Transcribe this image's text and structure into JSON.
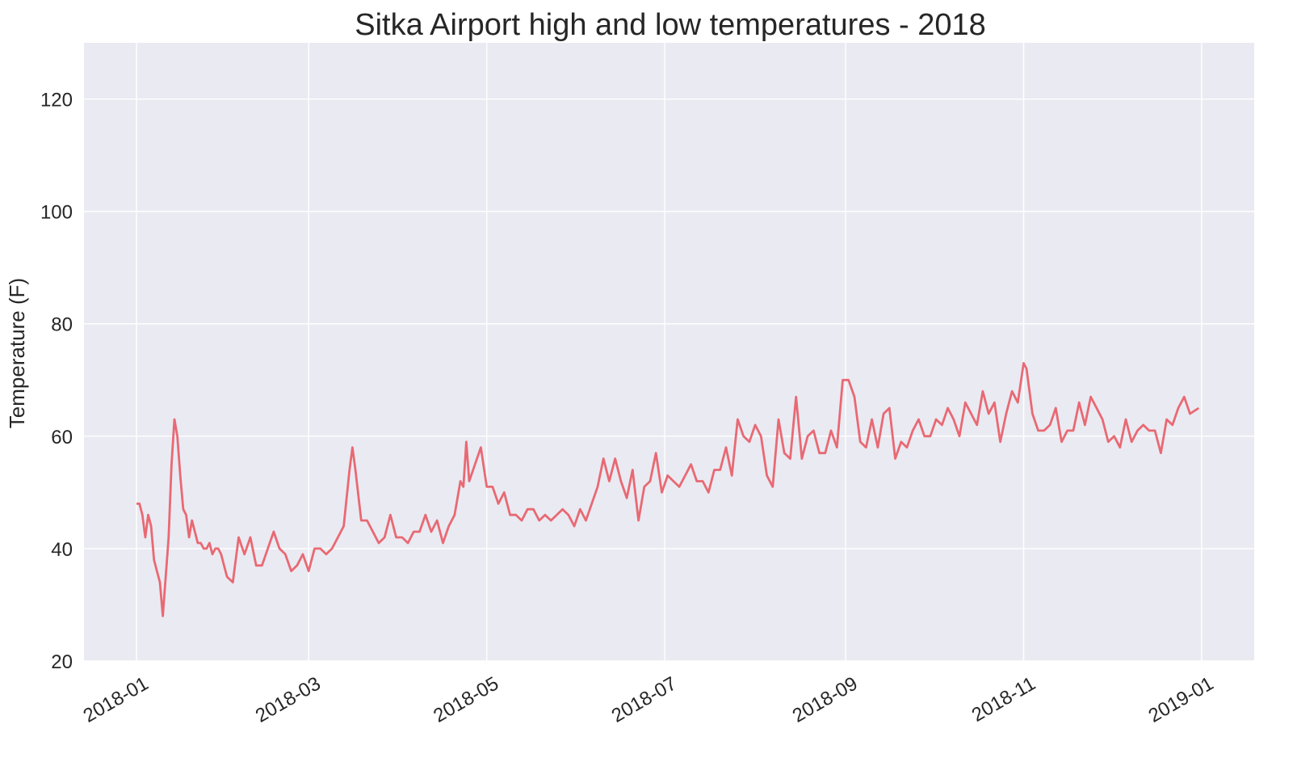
{
  "chart_data": {
    "type": "line",
    "title": "Sitka Airport high and low temperatures - 2018",
    "xlabel": "",
    "ylabel": "Temperature (F)",
    "xlim": [
      "2017-12-14",
      "2019-01-19"
    ],
    "ylim": [
      20,
      130
    ],
    "grid": true,
    "legend": "none",
    "x_ticks": [
      "2018-01",
      "2018-03",
      "2018-05",
      "2018-07",
      "2018-09",
      "2018-11",
      "2019-01"
    ],
    "y_ticks": [
      20,
      40,
      60,
      80,
      100,
      120
    ],
    "fill_between": {
      "color": "#0000ff",
      "opacity": 0.1
    },
    "series": [
      {
        "key": "highs",
        "color": "#e8525d",
        "points": [
          [
            "2018-01-01",
            48
          ],
          [
            "2018-01-02",
            48
          ],
          [
            "2018-01-03",
            46
          ],
          [
            "2018-01-04",
            42
          ],
          [
            "2018-01-05",
            46
          ],
          [
            "2018-01-06",
            44
          ],
          [
            "2018-01-07",
            38
          ],
          [
            "2018-01-08",
            36
          ],
          [
            "2018-01-09",
            34
          ],
          [
            "2018-01-10",
            28
          ],
          [
            "2018-01-11",
            35
          ],
          [
            "2018-01-12",
            42
          ],
          [
            "2018-01-13",
            55
          ],
          [
            "2018-01-14",
            63
          ],
          [
            "2018-01-15",
            60
          ],
          [
            "2018-01-16",
            53
          ],
          [
            "2018-01-17",
            47
          ],
          [
            "2018-01-18",
            46
          ],
          [
            "2018-01-19",
            42
          ],
          [
            "2018-01-20",
            45
          ],
          [
            "2018-01-21",
            43
          ],
          [
            "2018-01-22",
            41
          ],
          [
            "2018-01-23",
            41
          ],
          [
            "2018-01-24",
            40
          ],
          [
            "2018-01-25",
            40
          ],
          [
            "2018-01-26",
            41
          ],
          [
            "2018-01-27",
            39
          ],
          [
            "2018-01-28",
            40
          ],
          [
            "2018-01-29",
            40
          ],
          [
            "2018-01-30",
            39
          ],
          [
            "2018-01-31",
            37
          ],
          [
            "2018-02-01",
            35
          ],
          [
            "2018-02-03",
            34
          ],
          [
            "2018-02-05",
            42
          ],
          [
            "2018-02-07",
            39
          ],
          [
            "2018-02-09",
            42
          ],
          [
            "2018-02-11",
            37
          ],
          [
            "2018-02-13",
            37
          ],
          [
            "2018-02-15",
            40
          ],
          [
            "2018-02-17",
            43
          ],
          [
            "2018-02-19",
            40
          ],
          [
            "2018-02-21",
            39
          ],
          [
            "2018-02-23",
            36
          ],
          [
            "2018-02-25",
            37
          ],
          [
            "2018-02-27",
            39
          ],
          [
            "2018-03-01",
            36
          ],
          [
            "2018-03-03",
            40
          ],
          [
            "2018-03-05",
            40
          ],
          [
            "2018-03-07",
            39
          ],
          [
            "2018-03-09",
            40
          ],
          [
            "2018-03-11",
            42
          ],
          [
            "2018-03-13",
            44
          ],
          [
            "2018-03-15",
            54
          ],
          [
            "2018-03-16",
            58
          ],
          [
            "2018-03-17",
            54
          ],
          [
            "2018-03-19",
            45
          ],
          [
            "2018-03-21",
            45
          ],
          [
            "2018-03-23",
            43
          ],
          [
            "2018-03-25",
            41
          ],
          [
            "2018-03-27",
            42
          ],
          [
            "2018-03-29",
            46
          ],
          [
            "2018-03-31",
            42
          ],
          [
            "2018-04-02",
            42
          ],
          [
            "2018-04-04",
            41
          ],
          [
            "2018-04-06",
            43
          ],
          [
            "2018-04-08",
            43
          ],
          [
            "2018-04-10",
            46
          ],
          [
            "2018-04-12",
            43
          ],
          [
            "2018-04-14",
            45
          ],
          [
            "2018-04-16",
            41
          ],
          [
            "2018-04-18",
            44
          ],
          [
            "2018-04-20",
            46
          ],
          [
            "2018-04-22",
            52
          ],
          [
            "2018-04-23",
            51
          ],
          [
            "2018-04-24",
            59
          ],
          [
            "2018-04-25",
            52
          ],
          [
            "2018-04-27",
            55
          ],
          [
            "2018-04-29",
            58
          ],
          [
            "2018-05-01",
            51
          ],
          [
            "2018-05-03",
            51
          ],
          [
            "2018-05-05",
            48
          ],
          [
            "2018-05-07",
            50
          ],
          [
            "2018-05-09",
            46
          ],
          [
            "2018-05-11",
            46
          ],
          [
            "2018-05-13",
            45
          ],
          [
            "2018-05-15",
            47
          ],
          [
            "2018-05-17",
            47
          ],
          [
            "2018-05-19",
            45
          ],
          [
            "2018-05-21",
            46
          ],
          [
            "2018-05-23",
            45
          ],
          [
            "2018-05-25",
            46
          ],
          [
            "2018-05-27",
            47
          ],
          [
            "2018-05-29",
            46
          ],
          [
            "2018-05-31",
            44
          ],
          [
            "2018-06-02",
            47
          ],
          [
            "2018-06-04",
            45
          ],
          [
            "2018-06-06",
            48
          ],
          [
            "2018-06-08",
            51
          ],
          [
            "2018-06-10",
            56
          ],
          [
            "2018-06-12",
            52
          ],
          [
            "2018-06-14",
            56
          ],
          [
            "2018-06-16",
            52
          ],
          [
            "2018-06-18",
            49
          ],
          [
            "2018-06-20",
            54
          ],
          [
            "2018-06-22",
            45
          ],
          [
            "2018-06-24",
            51
          ],
          [
            "2018-06-26",
            52
          ],
          [
            "2018-06-28",
            57
          ],
          [
            "2018-06-30",
            50
          ],
          [
            "2018-07-02",
            53
          ],
          [
            "2018-07-04",
            52
          ],
          [
            "2018-07-06",
            51
          ],
          [
            "2018-07-08",
            53
          ],
          [
            "2018-07-10",
            55
          ],
          [
            "2018-07-12",
            52
          ],
          [
            "2018-07-14",
            52
          ],
          [
            "2018-07-16",
            50
          ],
          [
            "2018-07-18",
            54
          ],
          [
            "2018-07-20",
            54
          ],
          [
            "2018-07-22",
            58
          ],
          [
            "2018-07-24",
            53
          ],
          [
            "2018-07-26",
            63
          ],
          [
            "2018-07-28",
            60
          ],
          [
            "2018-07-30",
            59
          ],
          [
            "2018-08-01",
            62
          ],
          [
            "2018-08-03",
            60
          ],
          [
            "2018-08-05",
            53
          ],
          [
            "2018-08-07",
            51
          ],
          [
            "2018-08-09",
            63
          ],
          [
            "2018-08-11",
            57
          ],
          [
            "2018-08-13",
            56
          ],
          [
            "2018-08-15",
            67
          ],
          [
            "2018-08-17",
            56
          ],
          [
            "2018-08-19",
            60
          ],
          [
            "2018-08-21",
            61
          ],
          [
            "2018-08-23",
            57
          ],
          [
            "2018-08-25",
            57
          ],
          [
            "2018-08-27",
            61
          ],
          [
            "2018-08-29",
            58
          ],
          [
            "2018-08-31",
            70
          ],
          [
            "2018-09-02",
            70
          ],
          [
            "2018-09-04",
            67
          ],
          [
            "2018-09-06",
            59
          ],
          [
            "2018-09-08",
            58
          ],
          [
            "2018-09-10",
            63
          ],
          [
            "2018-09-12",
            58
          ],
          [
            "2018-09-14",
            64
          ],
          [
            "2018-09-16",
            65
          ],
          [
            "2018-09-18",
            56
          ],
          [
            "2018-09-20",
            59
          ],
          [
            "2018-09-22",
            58
          ],
          [
            "2018-09-24",
            61
          ],
          [
            "2018-09-26",
            63
          ],
          [
            "2018-09-28",
            60
          ],
          [
            "2018-09-30",
            60
          ],
          [
            "2018-10-02",
            63
          ],
          [
            "2018-10-04",
            62
          ],
          [
            "2018-10-06",
            65
          ],
          [
            "2018-10-08",
            63
          ],
          [
            "2018-10-10",
            60
          ],
          [
            "2018-10-12",
            66
          ],
          [
            "2018-10-14",
            64
          ],
          [
            "2018-10-16",
            62
          ],
          [
            "2018-10-18",
            68
          ],
          [
            "2018-10-20",
            64
          ],
          [
            "2018-10-22",
            66
          ],
          [
            "2018-10-24",
            59
          ],
          [
            "2018-10-26",
            64
          ],
          [
            "2018-10-28",
            68
          ],
          [
            "2018-10-30",
            66
          ],
          [
            "2018-11-01",
            73
          ],
          [
            "2018-11-02",
            72
          ],
          [
            "2018-11-04",
            64
          ],
          [
            "2018-11-06",
            61
          ],
          [
            "2018-11-08",
            61
          ],
          [
            "2018-11-10",
            62
          ],
          [
            "2018-11-12",
            65
          ],
          [
            "2018-11-14",
            59
          ],
          [
            "2018-11-16",
            61
          ],
          [
            "2018-11-18",
            61
          ],
          [
            "2018-11-20",
            66
          ],
          [
            "2018-11-22",
            62
          ],
          [
            "2018-11-24",
            67
          ],
          [
            "2018-11-26",
            65
          ],
          [
            "2018-11-28",
            63
          ],
          [
            "2018-11-30",
            59
          ],
          [
            "2018-12-02",
            60
          ],
          [
            "2018-12-04",
            58
          ],
          [
            "2018-12-06",
            63
          ],
          [
            "2018-12-08",
            59
          ],
          [
            "2018-12-10",
            61
          ],
          [
            "2018-12-12",
            62
          ],
          [
            "2018-12-14",
            61
          ],
          [
            "2018-12-16",
            61
          ],
          [
            "2018-12-18",
            57
          ],
          [
            "2018-12-20",
            63
          ],
          [
            "2018-12-22",
            62
          ],
          [
            "2018-12-24",
            65
          ],
          [
            "2018-12-26",
            67
          ],
          [
            "2018-12-28",
            64
          ],
          [
            "2018-12-31",
            65
          ]
        ]
      }
    ]
  }
}
